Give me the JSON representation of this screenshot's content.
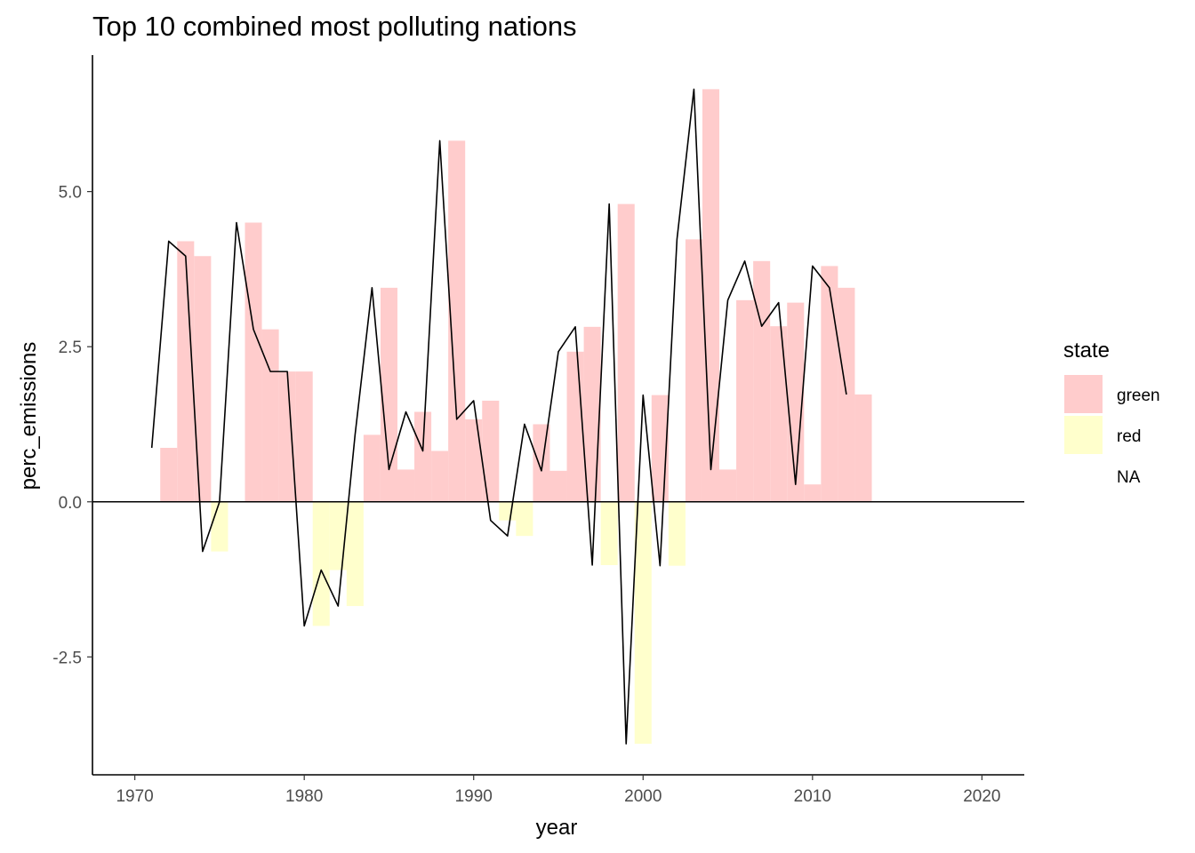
{
  "chart_data": {
    "type": "bar",
    "title": "Top 10 combined most polluting nations",
    "xlabel": "year",
    "ylabel": "perc_emissions",
    "xlim": [
      1967.5,
      2022.5
    ],
    "ylim": [
      -4.4,
      7.2
    ],
    "x_ticks": [
      1970,
      1980,
      1990,
      2000,
      2010,
      2020
    ],
    "y_ticks": [
      -2.5,
      0,
      2.5,
      5
    ],
    "y_tick_labels": [
      "-2.5",
      "0.0",
      "2.5",
      "5.0"
    ],
    "grid": false,
    "legend": {
      "title": "state",
      "position": "right",
      "entries": [
        {
          "label": "green",
          "color": "#ffcccc"
        },
        {
          "label": "red",
          "color": "#ffffcc"
        },
        {
          "label": "NA",
          "color": null
        }
      ]
    },
    "series": [
      {
        "name": "state bars",
        "x": [
          1972,
          1973,
          1974,
          1975,
          1976,
          1977,
          1978,
          1979,
          1980,
          1981,
          1982,
          1983,
          1984,
          1985,
          1986,
          1987,
          1988,
          1989,
          1990,
          1991,
          1992,
          1993,
          1994,
          1995,
          1996,
          1997,
          1998,
          1999,
          2000,
          2001,
          2002,
          2003,
          2004,
          2005,
          2006,
          2007,
          2008,
          2009,
          2010,
          2011,
          2012,
          2013
        ],
        "values": [
          0.87,
          4.2,
          3.96,
          -0.8,
          null,
          4.5,
          2.78,
          2.1,
          2.1,
          -2.0,
          -1.1,
          -1.68,
          1.08,
          3.45,
          0.52,
          1.45,
          0.82,
          5.82,
          1.33,
          1.63,
          -0.3,
          -0.55,
          1.25,
          0.5,
          2.42,
          2.82,
          -1.02,
          4.8,
          -3.9,
          1.72,
          -1.03,
          4.23,
          6.65,
          0.52,
          3.25,
          3.88,
          2.83,
          3.21,
          0.28,
          3.8,
          3.45,
          1.73
        ],
        "state": [
          "green",
          "green",
          "green",
          "red",
          "NA",
          "green",
          "green",
          "green",
          "green",
          "red",
          "red",
          "red",
          "green",
          "green",
          "green",
          "green",
          "green",
          "green",
          "green",
          "green",
          "red",
          "red",
          "green",
          "green",
          "green",
          "green",
          "red",
          "green",
          "red",
          "green",
          "red",
          "green",
          "green",
          "green",
          "green",
          "green",
          "green",
          "green",
          "green",
          "green",
          "green",
          "green"
        ]
      },
      {
        "name": "perc_emissions line",
        "x": [
          1971,
          1972,
          1973,
          1974,
          1975,
          1976,
          1977,
          1978,
          1979,
          1980,
          1981,
          1982,
          1983,
          1984,
          1985,
          1986,
          1987,
          1988,
          1989,
          1990,
          1991,
          1992,
          1993,
          1994,
          1995,
          1996,
          1997,
          1998,
          1999,
          2000,
          2001,
          2002,
          2003,
          2004,
          2005,
          2006,
          2007,
          2008,
          2009,
          2010,
          2011,
          2012
        ],
        "values": [
          0.87,
          4.2,
          3.96,
          -0.8,
          0.0,
          4.5,
          2.78,
          2.1,
          2.1,
          -2.0,
          -1.1,
          -1.68,
          1.08,
          3.45,
          0.52,
          1.45,
          0.82,
          5.82,
          1.33,
          1.63,
          -0.3,
          -0.55,
          1.25,
          0.5,
          2.42,
          2.82,
          -1.02,
          4.8,
          -3.9,
          1.72,
          -1.03,
          4.23,
          6.65,
          0.52,
          3.25,
          3.88,
          2.83,
          3.21,
          0.28,
          3.8,
          3.45,
          1.73
        ]
      }
    ]
  }
}
